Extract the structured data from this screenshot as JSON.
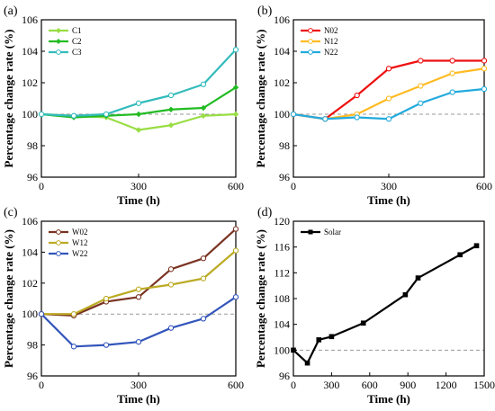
{
  "chart_data": [
    {
      "panel_label": "(a)",
      "type": "line",
      "xlabel": "Time (h)",
      "ylabel": "Percentage change rate (%)",
      "xlim": [
        0,
        600
      ],
      "ylim": [
        96,
        106
      ],
      "xticks": [
        0,
        300,
        600
      ],
      "yticks": [
        96,
        98,
        100,
        102,
        104,
        106
      ],
      "reference_line": 100,
      "legend_position": "top-left",
      "series": [
        {
          "name": "C1",
          "color": "#99dd44",
          "marker": "diamond",
          "x": [
            0,
            100,
            200,
            300,
            400,
            500,
            600
          ],
          "y": [
            100,
            99.9,
            99.8,
            99.0,
            99.3,
            99.9,
            100.0
          ]
        },
        {
          "name": "C2",
          "color": "#22bb22",
          "marker": "diamond",
          "x": [
            0,
            100,
            200,
            300,
            400,
            500,
            600
          ],
          "y": [
            100,
            99.8,
            99.9,
            100.0,
            100.3,
            100.4,
            101.7
          ]
        },
        {
          "name": "C3",
          "color": "#33bbbb",
          "marker": "circle",
          "x": [
            0,
            100,
            200,
            300,
            400,
            500,
            600
          ],
          "y": [
            100,
            99.9,
            100.0,
            100.7,
            101.2,
            101.9,
            104.1
          ]
        }
      ]
    },
    {
      "panel_label": "(b)",
      "type": "line",
      "xlabel": "Time (h)",
      "ylabel": "Percentage change rate (%)",
      "xlim": [
        0,
        600
      ],
      "ylim": [
        96,
        106
      ],
      "xticks": [
        0,
        300,
        600
      ],
      "yticks": [
        96,
        98,
        100,
        102,
        104,
        106
      ],
      "reference_line": 100,
      "legend_position": "top-left",
      "series": [
        {
          "name": "N02",
          "color": "#ee1111",
          "marker": "circle",
          "x": [
            0,
            100,
            200,
            300,
            400,
            500,
            600
          ],
          "y": [
            100,
            99.7,
            101.2,
            102.9,
            103.4,
            103.4,
            103.4
          ]
        },
        {
          "name": "N12",
          "color": "#ffbb22",
          "marker": "circle",
          "x": [
            0,
            100,
            200,
            300,
            400,
            500,
            600
          ],
          "y": [
            100,
            99.7,
            100.0,
            101.0,
            101.8,
            102.6,
            102.9
          ]
        },
        {
          "name": "N22",
          "color": "#22aadd",
          "marker": "circle",
          "x": [
            0,
            100,
            200,
            300,
            400,
            500,
            600
          ],
          "y": [
            100,
            99.7,
            99.8,
            99.7,
            100.7,
            101.4,
            101.6
          ]
        }
      ]
    },
    {
      "panel_label": "(c)",
      "type": "line",
      "xlabel": "Time (h)",
      "ylabel": "Percentage change rate (%)",
      "xlim": [
        0,
        600
      ],
      "ylim": [
        96,
        106
      ],
      "xticks": [
        0,
        300,
        600
      ],
      "yticks": [
        96,
        98,
        100,
        102,
        104,
        106
      ],
      "reference_line": 100,
      "legend_position": "top-left",
      "series": [
        {
          "name": "W02",
          "color": "#7a3322",
          "marker": "circle",
          "x": [
            0,
            100,
            200,
            300,
            400,
            500,
            600
          ],
          "y": [
            100,
            99.9,
            100.8,
            101.1,
            102.9,
            103.6,
            105.5
          ]
        },
        {
          "name": "W12",
          "color": "#bbaa22",
          "marker": "circle",
          "x": [
            0,
            100,
            200,
            300,
            400,
            500,
            600
          ],
          "y": [
            100,
            100.0,
            101.0,
            101.6,
            101.9,
            102.3,
            104.1
          ]
        },
        {
          "name": "W22",
          "color": "#3355bb",
          "marker": "circle",
          "x": [
            0,
            100,
            200,
            300,
            400,
            500,
            600
          ],
          "y": [
            100,
            97.9,
            98.0,
            98.2,
            99.1,
            99.7,
            101.1
          ]
        }
      ]
    },
    {
      "panel_label": "(d)",
      "type": "line",
      "xlabel": "Time (h)",
      "ylabel": "Percentage change rate (%)",
      "xlim": [
        0,
        1500
      ],
      "ylim": [
        96,
        120
      ],
      "xticks": [
        0,
        300,
        600,
        900,
        1200,
        1500
      ],
      "yticks": [
        96,
        100,
        104,
        108,
        112,
        116,
        120
      ],
      "reference_line": 100,
      "legend_position": "top-left",
      "series": [
        {
          "name": "Solar",
          "color": "#000000",
          "marker": "square",
          "x": [
            0,
            110,
            200,
            300,
            550,
            880,
            980,
            1310,
            1440
          ],
          "y": [
            100,
            98.0,
            101.6,
            102.1,
            104.2,
            108.6,
            111.2,
            114.8,
            116.2
          ]
        }
      ]
    }
  ]
}
